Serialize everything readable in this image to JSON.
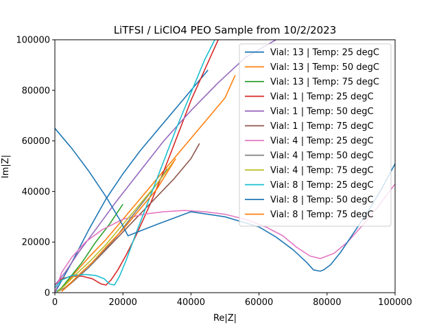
{
  "chart_data": {
    "type": "line",
    "title": "LiTFSI / LiClO4 PEO Sample from 10/2/2023",
    "xlabel": "Re|Z|",
    "ylabel": "Im|Z|",
    "xlim": [
      0,
      100000
    ],
    "ylim": [
      0,
      100000
    ],
    "xticks": [
      "0",
      "20000",
      "40000",
      "60000",
      "80000",
      "100000"
    ],
    "yticks": [
      "0",
      "20000",
      "40000",
      "60000",
      "80000",
      "100000"
    ],
    "grid": false,
    "legend_position": "top-right",
    "series": [
      {
        "name": "Vial: 13 | Temp: 25 degC",
        "color": "#1f77b4",
        "x": [
          0,
          5000,
          10000,
          15000,
          20000,
          25000,
          30000,
          35000,
          40000,
          45000
        ],
        "y": [
          0,
          12000,
          25000,
          37000,
          47000,
          56000,
          64000,
          72000,
          80000,
          88000
        ]
      },
      {
        "name": "Vial: 13 | Temp: 50 degC",
        "color": "#ff7f0e",
        "x": [
          1000,
          3000,
          6000,
          10000,
          15000,
          20000,
          25000,
          30000,
          35000,
          40000,
          45000,
          50000,
          53000
        ],
        "y": [
          500,
          3000,
          8000,
          14000,
          21000,
          29000,
          37000,
          45000,
          53000,
          61000,
          69000,
          77000,
          86000
        ]
      },
      {
        "name": "Vial: 13 | Temp: 75 degC",
        "color": "#2ca02c",
        "x": [
          500,
          2000,
          5000,
          8000,
          12000,
          16000,
          20000
        ],
        "y": [
          300,
          2000,
          7000,
          12000,
          20000,
          27000,
          35000
        ]
      },
      {
        "name": "Vial: 1 | Temp: 25 degC",
        "color": "#d62728",
        "x": [
          0,
          2000,
          5000,
          8000,
          11000,
          13500,
          15000,
          16500,
          18500,
          21000,
          24000,
          28000,
          32000,
          36000,
          40000,
          44000,
          48000
        ],
        "y": [
          3000,
          5500,
          6500,
          6500,
          5500,
          3500,
          3000,
          5000,
          9000,
          15000,
          23000,
          35000,
          48000,
          62000,
          76000,
          88000,
          100000
        ]
      },
      {
        "name": "Vial: 1 | Temp: 50 degC",
        "color": "#9467bd",
        "x": [
          0,
          3000,
          7000,
          12000,
          18000,
          25000,
          32000,
          40000,
          48000,
          56000,
          65000
        ],
        "y": [
          3000,
          8000,
          16000,
          25000,
          36000,
          48000,
          60000,
          72000,
          83000,
          93000,
          100000
        ]
      },
      {
        "name": "Vial: 1 | Temp: 75 degC",
        "color": "#8c564b",
        "x": [
          2000,
          5000,
          10000,
          15000,
          20000,
          25000,
          30000,
          35000,
          40000,
          42500
        ],
        "y": [
          500,
          4000,
          10000,
          17000,
          24000,
          31000,
          38000,
          45000,
          53000,
          59000
        ]
      },
      {
        "name": "Vial: 4 | Temp: 25 degC",
        "color": "#e377c2",
        "x": [
          0,
          2000,
          5000,
          9000,
          14000,
          20000,
          26000,
          32000,
          38000,
          44000,
          50000,
          56000,
          62000,
          67000,
          71000,
          75000,
          78000,
          82000,
          86000,
          90000,
          95000,
          100000
        ],
        "y": [
          0,
          8000,
          14000,
          20000,
          25000,
          29000,
          31000,
          32000,
          32500,
          32000,
          31000,
          29000,
          26000,
          22500,
          18000,
          14500,
          13500,
          15500,
          20000,
          26000,
          34000,
          43000
        ]
      },
      {
        "name": "Vial: 4 | Temp: 50 degC",
        "color": "#7f7f7f",
        "x": [
          1000,
          3000,
          6000,
          10000,
          14000,
          18000,
          22000,
          26000,
          30000,
          33000
        ],
        "y": [
          500,
          2000,
          5500,
          10000,
          16000,
          22000,
          29000,
          36000,
          43000,
          49000
        ]
      },
      {
        "name": "Vial: 4 | Temp: 75 degC",
        "color": "#bcbd22",
        "x": [
          1000,
          3000,
          6000,
          10000,
          15000,
          20000,
          25000,
          30000,
          35000
        ],
        "y": [
          500,
          3000,
          7000,
          12000,
          19000,
          27000,
          35000,
          43000,
          52000
        ]
      },
      {
        "name": "Vial: 8 | Temp: 25 degC",
        "color": "#17becf",
        "x": [
          0,
          2000,
          5000,
          9000,
          12000,
          14500,
          16000,
          17500,
          19000,
          21000,
          24000,
          28000,
          32000,
          36000,
          40000,
          44000,
          47000
        ],
        "y": [
          2000,
          5000,
          6800,
          7200,
          6800,
          5500,
          3500,
          3000,
          6500,
          13000,
          24000,
          38000,
          52000,
          66000,
          79000,
          92000,
          100000
        ]
      },
      {
        "name": "Vial: 8 | Temp: 50 degC",
        "color": "#1f77b4",
        "x": [
          0,
          5000,
          10000,
          15000,
          19000,
          21500,
          30000,
          40000,
          50000,
          60000,
          65000,
          70000,
          74000,
          76000,
          78000,
          79000,
          81000,
          84000,
          88000,
          92000,
          96000,
          100000
        ],
        "y": [
          65000,
          57000,
          48000,
          38000,
          29000,
          22500,
          27000,
          32000,
          30000,
          26000,
          22000,
          17000,
          12000,
          9000,
          8500,
          9000,
          11000,
          16000,
          24000,
          32000,
          41000,
          51000
        ]
      },
      {
        "name": "Vial: 8 | Temp: 75 degC",
        "color": "#ff7f0e",
        "x": [
          2000,
          4000,
          7000,
          11000,
          15000,
          20000,
          25000,
          30000,
          35500
        ],
        "y": [
          500,
          3000,
          7000,
          12000,
          18000,
          25000,
          33000,
          41000,
          53000
        ]
      }
    ]
  }
}
